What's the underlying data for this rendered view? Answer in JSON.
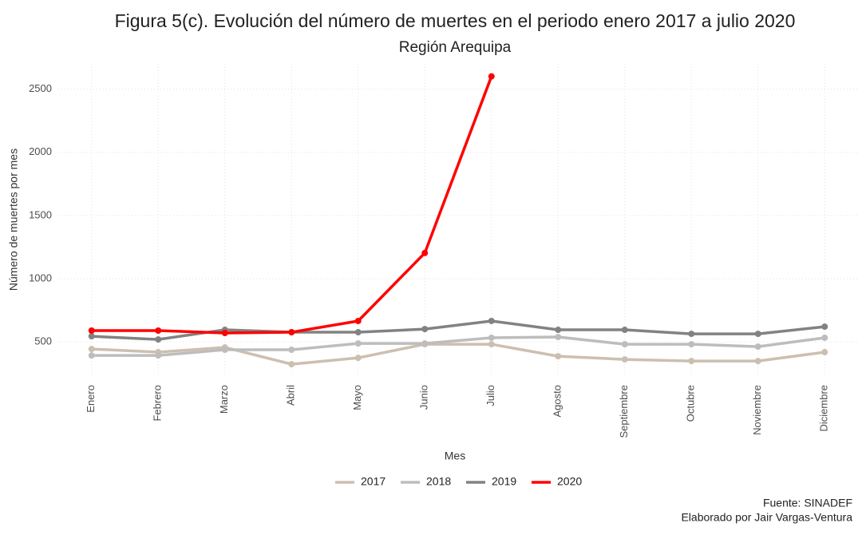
{
  "chart_data": {
    "type": "line",
    "title": "Figura 5(c). Evolución del número de muertes en el periodo enero 2017 a julio 2020",
    "subtitle": "Región Arequipa",
    "x_label": "Mes",
    "y_label": "Número de muertes por mes",
    "categories": [
      "Enero",
      "Febrero",
      "Marzo",
      "Abril",
      "Mayo",
      "Junio",
      "Julio",
      "Agosto",
      "Septiembre",
      "Octubre",
      "Noviembre",
      "Diciembre"
    ],
    "series": [
      {
        "name": "2017",
        "color": "#cdbfb0",
        "values": [
          443,
          418,
          456,
          323,
          373,
          481,
          481,
          386,
          361,
          348,
          348,
          418
        ]
      },
      {
        "name": "2018",
        "color": "#bdbdbd",
        "values": [
          392,
          392,
          437,
          437,
          487,
          487,
          532,
          538,
          481,
          481,
          462,
          532
        ]
      },
      {
        "name": "2019",
        "color": "#828282",
        "values": [
          544,
          519,
          595,
          576,
          576,
          601,
          665,
          595,
          595,
          563,
          563,
          620
        ]
      },
      {
        "name": "2020",
        "color": "#ff0000",
        "values": [
          589,
          589,
          570,
          576,
          665,
          1203,
          2601,
          null,
          null,
          null,
          null,
          null
        ]
      }
    ],
    "ylim": [
      235,
      2700
    ],
    "yticks": [
      500,
      1000,
      1500,
      2000,
      2500
    ],
    "grid": true,
    "legend": "bottom",
    "caption": [
      "Fuente: SINADEF",
      "Elaborado por Jair Vargas-Ventura"
    ]
  }
}
